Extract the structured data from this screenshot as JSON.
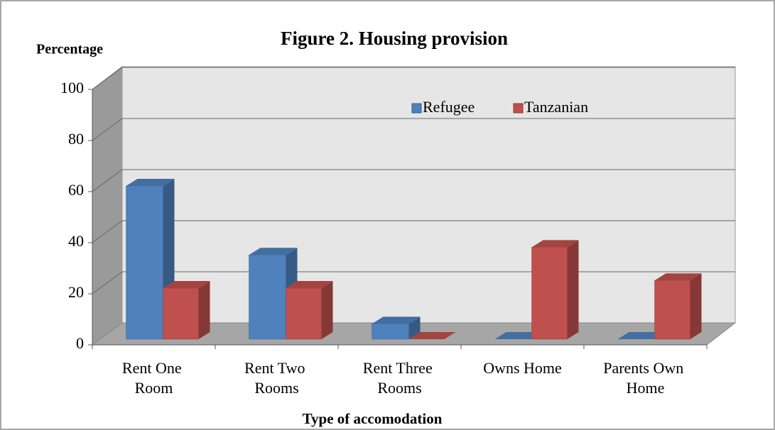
{
  "chart_data": {
    "type": "bar3d",
    "title": "Figure 2. Housing provision",
    "y_label": "Percentage",
    "x_label": "Type of accomodation",
    "categories": [
      "Rent One Room",
      "Rent Two Rooms",
      "Rent Three Rooms",
      "Owns Home",
      "Parents Own Home"
    ],
    "series": [
      {
        "name": "Refugee",
        "color": "#4f81bd",
        "values": [
          60,
          33,
          6,
          0,
          0
        ]
      },
      {
        "name": "Tanzanian",
        "color": "#c0504d",
        "values": [
          20,
          20,
          0,
          36,
          23
        ]
      }
    ],
    "ylim": [
      0,
      100
    ],
    "yticks": [
      0,
      20,
      40,
      60,
      80,
      100
    ],
    "grid": true
  }
}
